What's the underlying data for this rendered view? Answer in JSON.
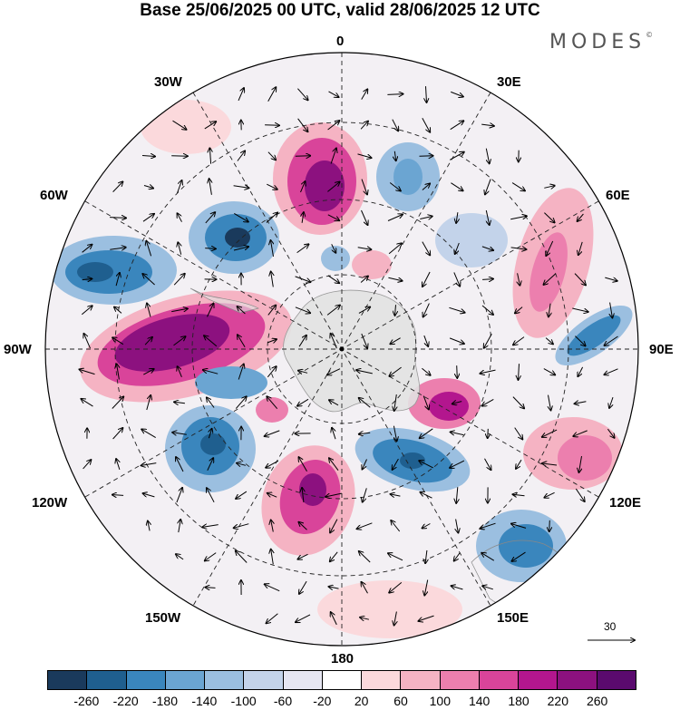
{
  "title": "Base 25/06/2025 00 UTC, valid 28/06/2025 12 UTC",
  "brand": "MODES",
  "brand_mark": "©",
  "longitude_labels": {
    "lon_0": "0",
    "lon_30e": "30E",
    "lon_60e": "60E",
    "lon_90e": "90E",
    "lon_120e": "120E",
    "lon_150e": "150E",
    "lon_180": "180",
    "lon_150w": "150W",
    "lon_120w": "120W",
    "lon_90w": "90W",
    "lon_60w": "60W",
    "lon_30w": "30W"
  },
  "reference_vector": {
    "label": "30"
  },
  "colorbar": {
    "ticks": [
      "-260",
      "-220",
      "-180",
      "-140",
      "-100",
      "-60",
      "-20",
      "20",
      "60",
      "100",
      "140",
      "180",
      "220",
      "260"
    ],
    "colors": [
      "#1a3a5c",
      "#1f5f8f",
      "#3a86bd",
      "#6ba5d2",
      "#9bbfe0",
      "#c3d3ea",
      "#e6e6f2",
      "#ffffff",
      "#fbd9dc",
      "#f5b3c3",
      "#ec7fae",
      "#d9449a",
      "#b3168e",
      "#8c117f",
      "#5a0a6e"
    ]
  },
  "projection": "south polar stereographic",
  "background_color": "#ffffff",
  "land_color": "#e2e2e2"
}
